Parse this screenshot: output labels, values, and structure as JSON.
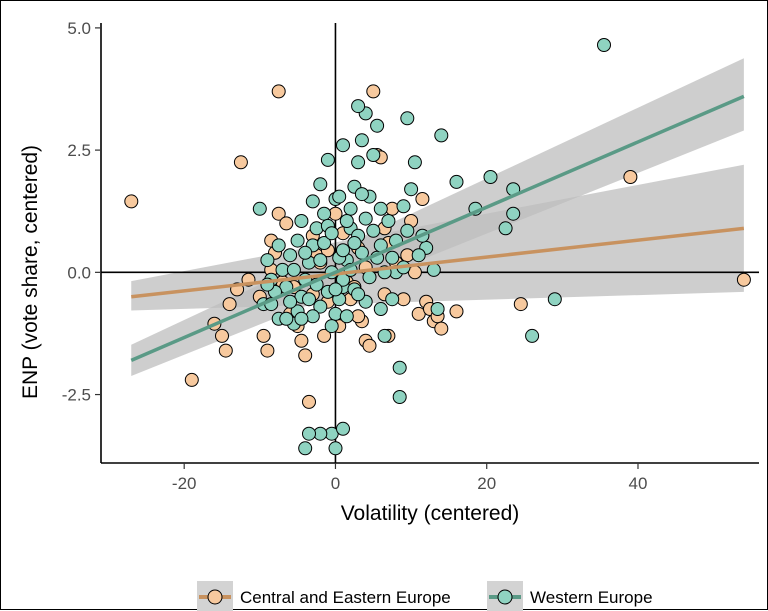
{
  "chart_data": {
    "type": "scatter",
    "xlabel": "Volatility (centered)",
    "ylabel": "ENP (vote share, centered)",
    "xlim": [
      -31,
      56
    ],
    "ylim": [
      -3.9,
      5.1
    ],
    "x_ticks": [
      -20,
      0,
      20,
      40
    ],
    "x_tick_labels": [
      "-20",
      "0",
      "20",
      "40"
    ],
    "y_ticks": [
      -2.5,
      0,
      2.5,
      5
    ],
    "y_tick_labels": [
      "-2.5",
      "0.0",
      "2.5",
      "5.0"
    ],
    "reference_lines": {
      "x": 0,
      "y": 0
    },
    "grid": false,
    "legend_position": "bottom",
    "series": [
      {
        "name": "Central and Eastern Europe",
        "color": "#f7c99e",
        "line_color": "#c8925f",
        "fit": {
          "x": [
            -27,
            54
          ],
          "y": [
            -0.5,
            0.9
          ]
        },
        "ci_lower": [
          -0.78,
          -0.4
        ],
        "ci_upper": [
          -0.18,
          2.2
        ],
        "points": [
          [
            -27,
            1.45
          ],
          [
            -7.5,
            3.7
          ],
          [
            -12.5,
            2.25
          ],
          [
            -19,
            -2.2
          ],
          [
            -16,
            -1.05
          ],
          [
            -15,
            -1.3
          ],
          [
            -14.5,
            -1.6
          ],
          [
            -14,
            -0.65
          ],
          [
            -13,
            -0.35
          ],
          [
            -11.5,
            -0.15
          ],
          [
            -10,
            -0.5
          ],
          [
            -9.5,
            -1.3
          ],
          [
            -9,
            -1.6
          ],
          [
            -8.5,
            0.65
          ],
          [
            -8,
            0.4
          ],
          [
            -7.5,
            1.2
          ],
          [
            -6.5,
            1.0
          ],
          [
            -6,
            -0.85
          ],
          [
            -5,
            -1.1
          ],
          [
            -4.5,
            -1.4
          ],
          [
            -4,
            -1.7
          ],
          [
            -3.5,
            -2.65
          ],
          [
            -3,
            -0.45
          ],
          [
            -2,
            0.2
          ],
          [
            -1,
            -0.6
          ],
          [
            0,
            1.2
          ],
          [
            1,
            0.8
          ],
          [
            1.5,
            -0.2
          ],
          [
            2,
            -0.55
          ],
          [
            3,
            0.5
          ],
          [
            3.5,
            -1.0
          ],
          [
            4,
            -1.4
          ],
          [
            4.5,
            -1.5
          ],
          [
            5,
            3.7
          ],
          [
            5.5,
            2.4
          ],
          [
            6,
            2.35
          ],
          [
            6.5,
            -0.45
          ],
          [
            7,
            0.6
          ],
          [
            7.5,
            1.3
          ],
          [
            8,
            0.2
          ],
          [
            9,
            -0.55
          ],
          [
            10,
            1.05
          ],
          [
            10.5,
            0.0
          ],
          [
            11,
            -0.85
          ],
          [
            11.5,
            1.5
          ],
          [
            12,
            -0.6
          ],
          [
            12.5,
            -0.75
          ],
          [
            13,
            -1.0
          ],
          [
            13.5,
            -0.9
          ],
          [
            14,
            -1.15
          ],
          [
            16,
            -0.8
          ],
          [
            24.5,
            -0.65
          ],
          [
            39,
            1.95
          ],
          [
            54,
            -0.15
          ],
          [
            -1.5,
            -1.3
          ],
          [
            2.5,
            -0.3
          ],
          [
            -5.5,
            -0.3
          ],
          [
            6.5,
            0.9
          ],
          [
            -2.5,
            0.35
          ],
          [
            0.5,
            -1.1
          ],
          [
            -7,
            -0.2
          ],
          [
            4,
            0.1
          ],
          [
            7,
            -1.3
          ],
          [
            -3,
            0.75
          ],
          [
            9.5,
            0.35
          ],
          [
            -1,
            0.45
          ],
          [
            3,
            -0.9
          ],
          [
            -8.5,
            0.05
          ]
        ]
      },
      {
        "name": "Western Europe",
        "color": "#8fd3c1",
        "line_color": "#5a9a86",
        "fit": {
          "x": [
            -27,
            54
          ],
          "y": [
            -1.8,
            3.6
          ]
        },
        "ci_lower": [
          -2.12,
          2.9
        ],
        "ci_upper": [
          -1.48,
          4.38
        ],
        "points": [
          [
            35.5,
            4.65
          ],
          [
            29,
            -0.55
          ],
          [
            26,
            -1.3
          ],
          [
            23.5,
            1.7
          ],
          [
            23.5,
            1.2
          ],
          [
            22.5,
            0.9
          ],
          [
            20.5,
            1.95
          ],
          [
            18.5,
            1.3
          ],
          [
            16,
            1.85
          ],
          [
            14,
            2.8
          ],
          [
            13.5,
            -0.75
          ],
          [
            13,
            0.05
          ],
          [
            12,
            0.5
          ],
          [
            11.5,
            0.75
          ],
          [
            10.5,
            2.25
          ],
          [
            10,
            1.7
          ],
          [
            9.5,
            3.15
          ],
          [
            9.5,
            0.85
          ],
          [
            9,
            1.35
          ],
          [
            8.5,
            -1.95
          ],
          [
            8.5,
            -2.55
          ],
          [
            8,
            0.0
          ],
          [
            7.5,
            -0.55
          ],
          [
            7,
            1.05
          ],
          [
            6.5,
            -1.3
          ],
          [
            6,
            -0.75
          ],
          [
            5.5,
            3.0
          ],
          [
            5,
            2.4
          ],
          [
            4.5,
            1.55
          ],
          [
            4,
            3.25
          ],
          [
            3.5,
            2.7
          ],
          [
            3,
            3.4
          ],
          [
            3,
            2.25
          ],
          [
            2.5,
            1.75
          ],
          [
            2,
            1.3
          ],
          [
            1.5,
            0.25
          ],
          [
            1,
            -0.3
          ],
          [
            0.5,
            -0.55
          ],
          [
            0,
            -0.85
          ],
          [
            -0.5,
            -1.1
          ],
          [
            0,
            -3.6
          ],
          [
            -0.5,
            -3.3
          ],
          [
            1,
            -3.2
          ],
          [
            -2,
            -3.3
          ],
          [
            -3.5,
            -3.3
          ],
          [
            -4,
            -3.6
          ],
          [
            -1,
            2.3
          ],
          [
            1,
            2.6
          ],
          [
            0,
            1.5
          ],
          [
            -1.5,
            1.2
          ],
          [
            -2.5,
            0.9
          ],
          [
            -3,
            0.55
          ],
          [
            -3.5,
            0.2
          ],
          [
            -4,
            -0.15
          ],
          [
            -4.5,
            -0.5
          ],
          [
            -5,
            -0.8
          ],
          [
            -5.5,
            -1.05
          ],
          [
            -6,
            -0.6
          ],
          [
            -6.5,
            -0.3
          ],
          [
            -7,
            0.05
          ],
          [
            -7.5,
            -0.95
          ],
          [
            -8,
            -0.4
          ],
          [
            -8.5,
            -0.15
          ],
          [
            -9,
            0.25
          ],
          [
            -9.5,
            -0.65
          ],
          [
            -10,
            1.3
          ],
          [
            -3,
            1.45
          ],
          [
            -4.5,
            1.05
          ],
          [
            -2,
            1.8
          ],
          [
            0.5,
            1.55
          ],
          [
            2,
            0.9
          ],
          [
            3.5,
            0.4
          ],
          [
            4.5,
            -0.1
          ],
          [
            5.5,
            0.3
          ],
          [
            6.5,
            0.0
          ],
          [
            7.5,
            0.3
          ],
          [
            2.5,
            -0.35
          ],
          [
            4,
            -0.6
          ],
          [
            1.5,
            -0.9
          ],
          [
            -1,
            -0.4
          ],
          [
            -2,
            -0.7
          ],
          [
            -3,
            -0.9
          ],
          [
            -1.5,
            0.6
          ],
          [
            0.5,
            0.3
          ],
          [
            1,
            -0.15
          ],
          [
            -0.5,
            0.0
          ],
          [
            -5,
            0.65
          ],
          [
            -6,
            0.35
          ],
          [
            3,
            0.75
          ],
          [
            5,
            0.85
          ],
          [
            6,
            0.55
          ],
          [
            -7.5,
            0.55
          ],
          [
            -8.5,
            -0.65
          ],
          [
            -2.5,
            -0.25
          ],
          [
            -4,
            0.4
          ],
          [
            2,
            0.05
          ],
          [
            3,
            -0.45
          ],
          [
            -1,
            0.95
          ],
          [
            4,
            1.1
          ],
          [
            -3.5,
            -0.55
          ],
          [
            -2,
            0.25
          ],
          [
            1,
            0.45
          ],
          [
            -5.5,
            0.05
          ],
          [
            -0.5,
            0.8
          ],
          [
            6,
            1.3
          ],
          [
            8,
            0.65
          ],
          [
            -6.5,
            -0.95
          ],
          [
            -4.5,
            -0.95
          ],
          [
            1.5,
            1.05
          ],
          [
            3.5,
            1.6
          ],
          [
            9,
            0.1
          ],
          [
            11,
            0.35
          ],
          [
            -9,
            -0.25
          ],
          [
            0,
            -0.35
          ],
          [
            2.5,
            0.6
          ]
        ]
      }
    ]
  }
}
